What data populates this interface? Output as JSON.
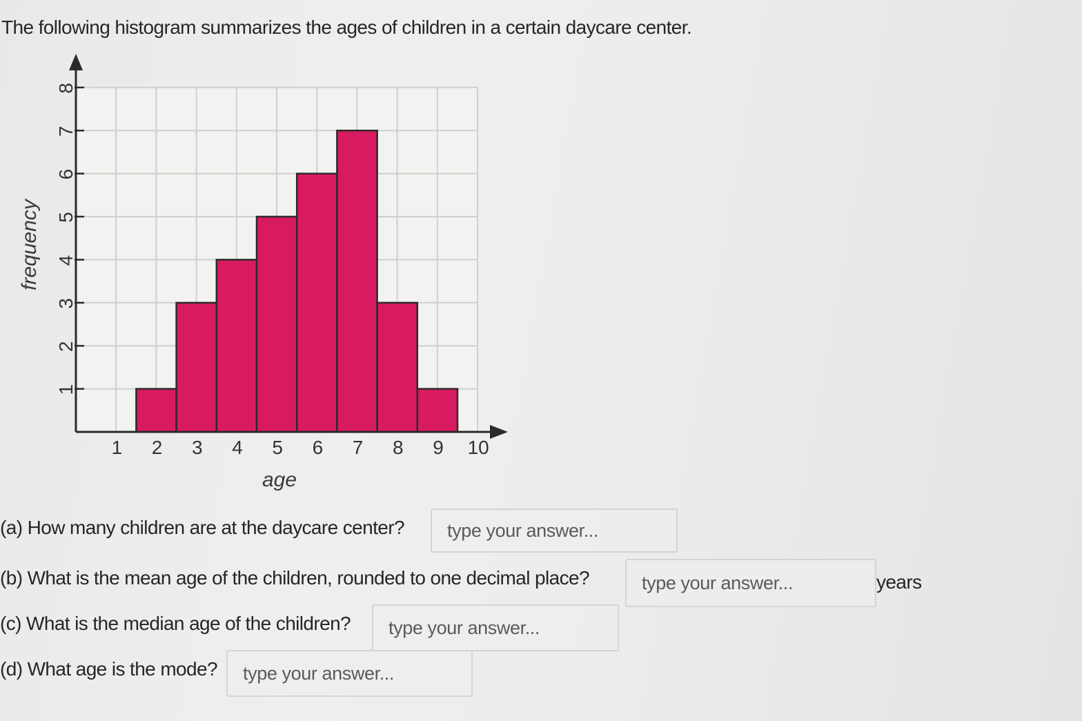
{
  "prompt": "The following histogram summarizes the ages of children in a certain daycare center.",
  "chart_data": {
    "type": "bar",
    "title": "",
    "xlabel": "age",
    "ylabel": "frequency",
    "x_ticks": [
      1,
      2,
      3,
      4,
      5,
      6,
      7,
      8,
      9,
      10
    ],
    "y_ticks": [
      1,
      2,
      3,
      4,
      5,
      6,
      7,
      8
    ],
    "categories": [
      2,
      3,
      4,
      5,
      6,
      7,
      8,
      9
    ],
    "values": [
      1,
      3,
      4,
      5,
      6,
      7,
      3,
      1
    ],
    "xlim": [
      0,
      10
    ],
    "ylim": [
      0,
      8
    ],
    "grid": true,
    "bar_color": "#d81b60"
  },
  "questions": [
    {
      "id": "a",
      "label": "(a) How many children are at the daycare center?",
      "placeholder": "type your answer...",
      "unit": ""
    },
    {
      "id": "b",
      "label": "(b) What is the mean age of the children, rounded to one decimal place?",
      "placeholder": "type your answer...",
      "unit": "years"
    },
    {
      "id": "c",
      "label": "(c) What is the median age of the children?",
      "placeholder": "type your answer...",
      "unit": ""
    },
    {
      "id": "d",
      "label": "(d) What age is the mode?",
      "placeholder": "type your answer...",
      "unit": ""
    }
  ]
}
